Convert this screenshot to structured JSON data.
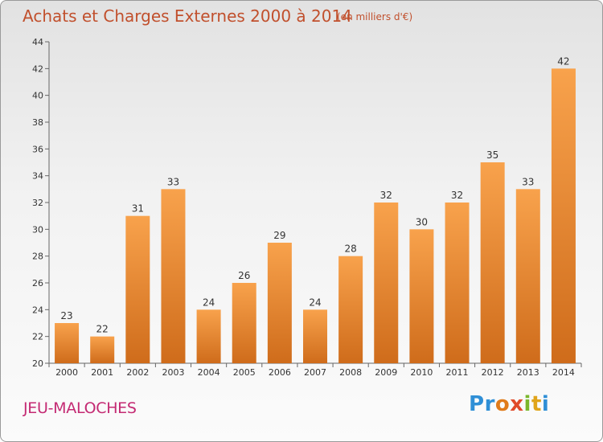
{
  "header": {
    "title": "Achats et Charges Externes 2000 à 2014",
    "unit": "(en milliers d'€)"
  },
  "footer": {
    "town": "JEU-MALOCHES",
    "logo_text": "Proxiti"
  },
  "colors": {
    "title": "#c1502d",
    "town": "#c42a73",
    "bar_top": "#f8a24c",
    "bar_bottom": "#cf6c1b"
  },
  "chart_data": {
    "type": "bar",
    "title": "Achats et Charges Externes 2000 à 2014",
    "subtitle": "(en milliers d'€)",
    "categories": [
      "2000",
      "2001",
      "2002",
      "2003",
      "2004",
      "2005",
      "2006",
      "2007",
      "2008",
      "2009",
      "2010",
      "2011",
      "2012",
      "2013",
      "2014"
    ],
    "values": [
      23,
      22,
      31,
      33,
      24,
      26,
      29,
      24,
      28,
      32,
      30,
      32,
      35,
      33,
      42
    ],
    "ylim": [
      20,
      44
    ],
    "yticks": [
      20,
      22,
      24,
      26,
      28,
      30,
      32,
      34,
      36,
      38,
      40,
      42,
      44
    ],
    "grid": false,
    "data_labels": true
  }
}
